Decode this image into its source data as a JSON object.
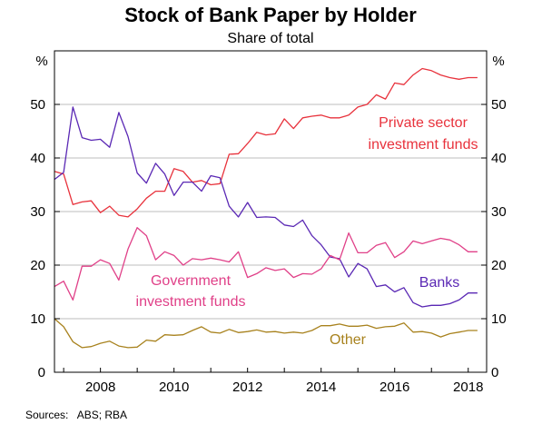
{
  "chart_data": {
    "type": "line",
    "title": "Stock of Bank Paper by Holder",
    "subtitle": "Share of total",
    "ylabel_left": "%",
    "ylabel_right": "%",
    "ylim": [
      0,
      60
    ],
    "yticks": [
      0,
      10,
      20,
      30,
      40,
      50
    ],
    "xlim": [
      2006.75,
      2018.5
    ],
    "xticks": [
      2008,
      2010,
      2012,
      2014,
      2016,
      2018
    ],
    "grid": "horizontal",
    "source": "Sources:   ABS; RBA",
    "series": [
      {
        "name": "Private sector investment funds",
        "label_lines": [
          "Private sector",
          "investment funds"
        ],
        "color": "#e8323c",
        "x": [
          2006.75,
          2007.0,
          2007.25,
          2007.5,
          2007.75,
          2008.0,
          2008.25,
          2008.5,
          2008.75,
          2009.0,
          2009.25,
          2009.5,
          2009.75,
          2010.0,
          2010.25,
          2010.5,
          2010.75,
          2011.0,
          2011.25,
          2011.5,
          2011.75,
          2012.0,
          2012.25,
          2012.5,
          2012.75,
          2013.0,
          2013.25,
          2013.5,
          2013.75,
          2014.0,
          2014.25,
          2014.5,
          2014.75,
          2015.0,
          2015.25,
          2015.5,
          2015.75,
          2016.0,
          2016.25,
          2016.5,
          2016.75,
          2017.0,
          2017.25,
          2017.5,
          2017.75,
          2018.0,
          2018.25
        ],
        "y": [
          37.5,
          37.0,
          31.3,
          31.8,
          32.0,
          29.8,
          31.0,
          29.3,
          29.0,
          30.5,
          32.5,
          33.8,
          33.8,
          38.0,
          37.5,
          35.5,
          35.8,
          35.0,
          35.2,
          40.7,
          40.8,
          42.7,
          44.8,
          44.3,
          44.5,
          47.3,
          45.5,
          47.5,
          47.8,
          48.0,
          47.5,
          47.5,
          48.0,
          49.5,
          50.0,
          51.8,
          51.0,
          54.0,
          53.7,
          55.5,
          56.7,
          56.3,
          55.5,
          55.0,
          54.7,
          55.0,
          55.0
        ]
      },
      {
        "name": "Banks",
        "label_lines": [
          "Banks"
        ],
        "color": "#5a28b4",
        "x": [
          2006.75,
          2007.0,
          2007.25,
          2007.5,
          2007.75,
          2008.0,
          2008.25,
          2008.5,
          2008.75,
          2009.0,
          2009.25,
          2009.5,
          2009.75,
          2010.0,
          2010.25,
          2010.5,
          2010.75,
          2011.0,
          2011.25,
          2011.5,
          2011.75,
          2012.0,
          2012.25,
          2012.5,
          2012.75,
          2013.0,
          2013.25,
          2013.5,
          2013.75,
          2014.0,
          2014.25,
          2014.5,
          2014.75,
          2015.0,
          2015.25,
          2015.5,
          2015.75,
          2016.0,
          2016.25,
          2016.5,
          2016.75,
          2017.0,
          2017.25,
          2017.5,
          2017.75,
          2018.0,
          2018.25
        ],
        "y": [
          36.0,
          37.3,
          49.5,
          43.8,
          43.3,
          43.5,
          42.0,
          48.5,
          44.0,
          37.2,
          35.3,
          39.0,
          37.0,
          33.0,
          35.5,
          35.5,
          33.8,
          36.7,
          36.3,
          31.0,
          29.0,
          31.7,
          28.9,
          29.0,
          28.9,
          27.5,
          27.2,
          28.4,
          25.5,
          23.8,
          21.5,
          21.2,
          17.8,
          20.3,
          19.3,
          16.0,
          16.3,
          15.0,
          15.8,
          13.0,
          12.2,
          12.5,
          12.5,
          12.8,
          13.5,
          14.8,
          14.8
        ]
      },
      {
        "name": "Government investment funds",
        "label_lines": [
          "Government",
          "investment funds"
        ],
        "color": "#e04088",
        "x": [
          2006.75,
          2007.0,
          2007.25,
          2007.5,
          2007.75,
          2008.0,
          2008.25,
          2008.5,
          2008.75,
          2009.0,
          2009.25,
          2009.5,
          2009.75,
          2010.0,
          2010.25,
          2010.5,
          2010.75,
          2011.0,
          2011.25,
          2011.5,
          2011.75,
          2012.0,
          2012.25,
          2012.5,
          2012.75,
          2013.0,
          2013.25,
          2013.5,
          2013.75,
          2014.0,
          2014.25,
          2014.5,
          2014.75,
          2015.0,
          2015.25,
          2015.5,
          2015.75,
          2016.0,
          2016.25,
          2016.5,
          2016.75,
          2017.0,
          2017.25,
          2017.5,
          2017.75,
          2018.0,
          2018.25
        ],
        "y": [
          16.0,
          17.0,
          13.5,
          19.8,
          19.8,
          21.0,
          20.3,
          17.2,
          23.0,
          27.0,
          25.5,
          21.0,
          22.5,
          21.8,
          20.0,
          21.2,
          21.0,
          21.3,
          21.0,
          20.6,
          22.5,
          17.7,
          18.4,
          19.5,
          19.0,
          19.3,
          17.7,
          18.4,
          18.3,
          19.3,
          21.8,
          21.0,
          26.0,
          22.3,
          22.3,
          23.7,
          24.2,
          21.4,
          22.5,
          24.5,
          24.0,
          24.5,
          25.0,
          24.7,
          23.8,
          22.5,
          22.5
        ]
      },
      {
        "name": "Other",
        "label_lines": [
          "Other"
        ],
        "color": "#a8821e",
        "x": [
          2006.75,
          2007.0,
          2007.25,
          2007.5,
          2007.75,
          2008.0,
          2008.25,
          2008.5,
          2008.75,
          2009.0,
          2009.25,
          2009.5,
          2009.75,
          2010.0,
          2010.25,
          2010.5,
          2010.75,
          2011.0,
          2011.25,
          2011.5,
          2011.75,
          2012.0,
          2012.25,
          2012.5,
          2012.75,
          2013.0,
          2013.25,
          2013.5,
          2013.75,
          2014.0,
          2014.25,
          2014.5,
          2014.75,
          2015.0,
          2015.25,
          2015.5,
          2015.75,
          2016.0,
          2016.25,
          2016.5,
          2016.75,
          2017.0,
          2017.25,
          2017.5,
          2017.75,
          2018.0,
          2018.25
        ],
        "y": [
          10.0,
          8.5,
          5.7,
          4.6,
          4.8,
          5.4,
          5.8,
          4.9,
          4.6,
          4.7,
          6.0,
          5.8,
          7.0,
          6.9,
          7.0,
          7.8,
          8.5,
          7.5,
          7.3,
          8.0,
          7.4,
          7.6,
          7.9,
          7.5,
          7.6,
          7.3,
          7.5,
          7.3,
          7.8,
          8.7,
          8.7,
          9.0,
          8.6,
          8.6,
          8.8,
          8.2,
          8.5,
          8.6,
          9.2,
          7.5,
          7.6,
          7.3,
          6.6,
          7.2,
          7.5,
          7.8,
          7.8
        ]
      }
    ]
  }
}
